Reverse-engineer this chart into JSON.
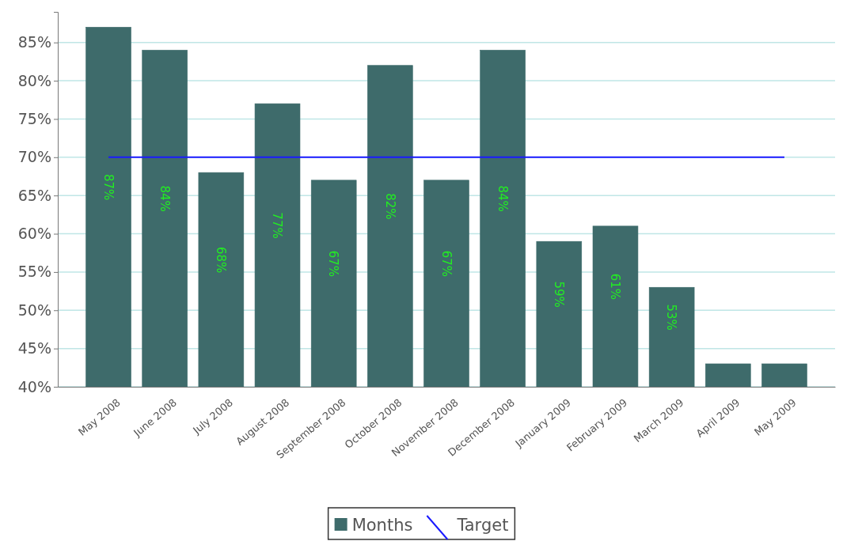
{
  "chart_data": {
    "type": "bar",
    "categories": [
      "May 2008",
      "June 2008",
      "July 2008",
      "August 2008",
      "September 2008",
      "October 2008",
      "November 2008",
      "December 2008",
      "January 2009",
      "February 2009",
      "March 2009",
      "April 2009",
      "May 2009"
    ],
    "series": [
      {
        "name": "Months",
        "color": "#3e6b6b",
        "values": [
          87,
          84,
          68,
          77,
          67,
          82,
          67,
          84,
          59,
          61,
          53,
          43,
          43
        ],
        "value_labels": [
          "87%",
          "84%",
          "68%",
          "77%",
          "67%",
          "82%",
          "67%",
          "84%",
          "59%",
          "61%",
          "53%",
          null,
          null
        ]
      },
      {
        "name": "Target",
        "type": "line",
        "color": "#1a1aff",
        "values": [
          70,
          70,
          70,
          70,
          70,
          70,
          70,
          70,
          70,
          70,
          70,
          70,
          70
        ]
      }
    ],
    "ylim": [
      40,
      89
    ],
    "yticks": [
      {
        "value": 40,
        "label": "40%"
      },
      {
        "value": 45,
        "label": "45%"
      },
      {
        "value": 50,
        "label": "50%"
      },
      {
        "value": 55,
        "label": "55%"
      },
      {
        "value": 60,
        "label": "60%"
      },
      {
        "value": 65,
        "label": "65%"
      },
      {
        "value": 70,
        "label": "70%"
      },
      {
        "value": 75,
        "label": "75%"
      },
      {
        "value": 80,
        "label": "80%"
      },
      {
        "value": 85,
        "label": "85%"
      }
    ],
    "grid": "y",
    "legend": "bottom",
    "marker": "none",
    "line_style": "solid"
  }
}
